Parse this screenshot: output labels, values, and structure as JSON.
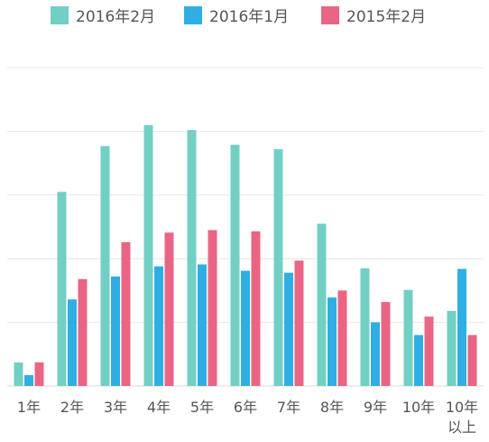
{
  "chart_data": {
    "type": "bar",
    "categories": [
      "1年",
      "2年",
      "3年",
      "4年",
      "5年",
      "6年",
      "7年",
      "8年",
      "9年",
      "10年",
      "10年\n以上"
    ],
    "series": [
      {
        "name": "2016年2月",
        "color": "#72cfc4",
        "values": [
          3.7,
          30.5,
          37.7,
          41.0,
          40.2,
          37.9,
          37.2,
          25.5,
          18.5,
          15.1,
          11.8
        ]
      },
      {
        "name": "2016年1月",
        "color": "#2faee3",
        "values": [
          1.7,
          13.6,
          17.2,
          18.8,
          19.1,
          18.1,
          17.8,
          13.9,
          10.0,
          8.0,
          18.4
        ]
      },
      {
        "name": "2015年2月",
        "color": "#ea6484",
        "values": [
          3.7,
          16.8,
          22.6,
          24.1,
          24.5,
          24.3,
          19.7,
          15.0,
          13.2,
          10.9,
          8.0
        ]
      }
    ],
    "ylim": [
      0,
      50
    ],
    "grid": true,
    "legend_position": "top"
  }
}
